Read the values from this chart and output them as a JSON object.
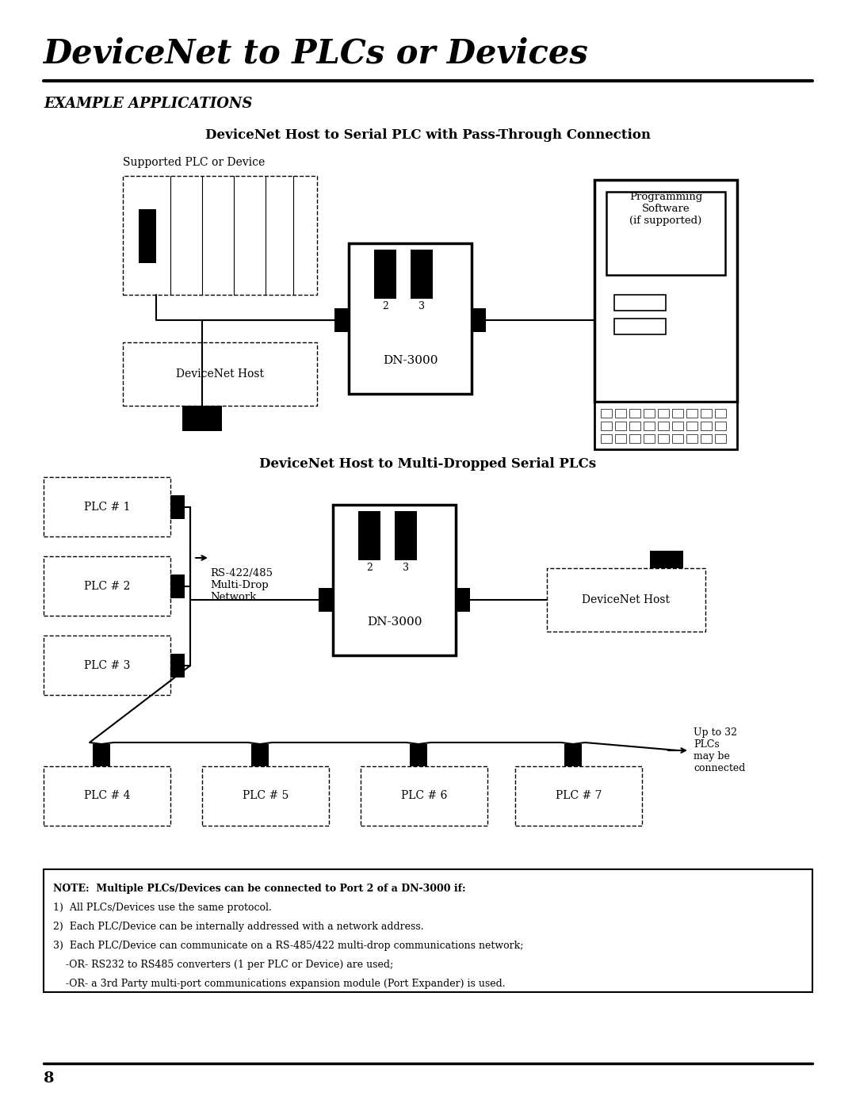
{
  "title": "DeviceNet to PLCs or Devices",
  "subtitle": "EXAMPLE APPLICATIONS",
  "diagram1_title": "DeviceNet Host to Serial PLC with Pass-Through Connection",
  "diagram2_title": "DeviceNet Host to Multi-Dropped Serial PLCs",
  "page_number": "8",
  "background_color": "#ffffff",
  "text_color": "#000000",
  "note_lines": [
    {
      "bold": true,
      "text": "NOTE:  Multiple PLCs/Devices can be connected to Port 2 of a DN-3000 if:"
    },
    {
      "bold": false,
      "text": "1)  All PLCs/Devices use the same protocol."
    },
    {
      "bold": false,
      "text": "2)  Each PLC/Device can be internally addressed with a network address."
    },
    {
      "bold": false,
      "text": "3)  Each PLC/Device can communicate on a RS-485/422 multi-drop communications network;"
    },
    {
      "bold": false,
      "text": "    -OR- RS232 to RS485 converters (1 per PLC or Device) are used;"
    },
    {
      "bold": false,
      "text": "    -OR- a 3rd Party multi-port communications expansion module (Port Expander) is used."
    }
  ]
}
